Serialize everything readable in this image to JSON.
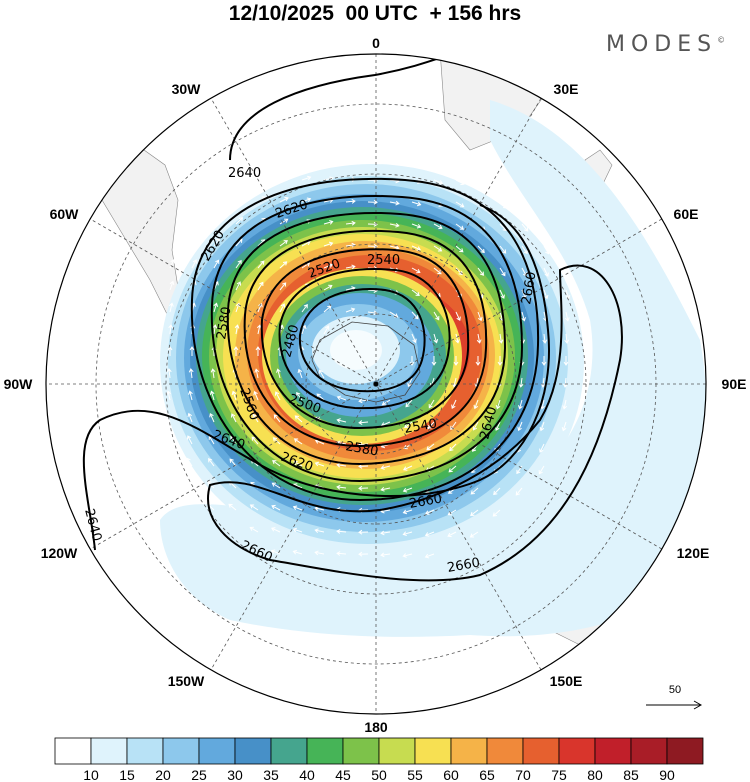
{
  "title": "12/10/2025  00 UTC  + 156 hrs",
  "brand": "MODES",
  "brand_mark": "©",
  "longitude_labels": [
    "0",
    "30E",
    "60E",
    "90E",
    "120E",
    "150E",
    "180",
    "150W",
    "120W",
    "90W",
    "60W",
    "30W"
  ],
  "contour_labels": [
    "2640",
    "2620",
    "2620",
    "2580",
    "2520",
    "2540",
    "2660",
    "2480",
    "2560",
    "2500",
    "2640",
    "2620",
    "2580",
    "2540",
    "2640",
    "2640",
    "2660",
    "2660",
    "2660"
  ],
  "wind_reference": "50",
  "colorbar": {
    "labels": [
      "10",
      "15",
      "20",
      "25",
      "30",
      "35",
      "40",
      "45",
      "50",
      "55",
      "60",
      "65",
      "70",
      "75",
      "80",
      "85",
      "90"
    ],
    "colors": [
      "#ffffff",
      "#dff3fc",
      "#b8e2f6",
      "#8dc8ec",
      "#62a9dd",
      "#4790c8",
      "#45a58e",
      "#46b457",
      "#7dc24a",
      "#c7dc50",
      "#f7e052",
      "#f5b348",
      "#f0893a",
      "#e6602f",
      "#d9352c",
      "#c11f2a",
      "#a91d27",
      "#8e1a22"
    ]
  },
  "colors": {
    "land": "#f2f2f2",
    "contour": "#000000",
    "grid": "#555555"
  }
}
